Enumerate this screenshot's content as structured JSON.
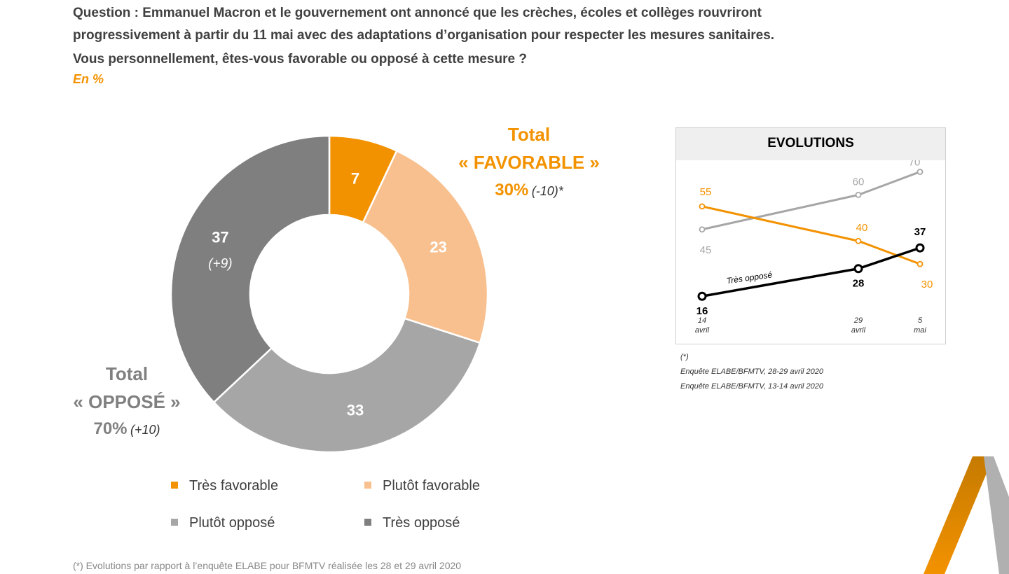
{
  "question": {
    "line1": "Question : Emmanuel Macron et le gouvernement ont annoncé que les crèches, écoles et collèges rouvriront",
    "line2": "progressivement à partir du 11 mai avec des adaptations d’organisation pour respecter les mesures sanitaires.",
    "line3": "Vous personnellement, êtes-vous favorable ou opposé à cette mesure ?",
    "unit": "En %"
  },
  "totals": {
    "favorable": {
      "label1": "Total",
      "label2": "« FAVORABLE »",
      "pct": "30%",
      "delta": "(-10)*"
    },
    "oppose": {
      "label1": "Total",
      "label2": "« OPPOSÉ »",
      "pct": "70%",
      "delta": "(+10)"
    }
  },
  "colors": {
    "tres_favorable": "#f39200",
    "plutot_favorable": "#f8c08f",
    "plutot_oppose": "#a6a6a6",
    "tres_oppose": "#7f7f7f",
    "accent_orange": "#f39200",
    "line_black": "#000000"
  },
  "legend": [
    "Très favorable",
    "Plutôt favorable",
    "Plutôt opposé",
    "Très opposé"
  ],
  "evolutions": {
    "title": "EVOLUTIONS",
    "line_label": "Très opposé",
    "notes": [
      "(*)",
      "Enquête ELABE/BFMTV, 28-29 avril 2020",
      "Enquête ELABE/BFMTV, 13-14 avril 2020"
    ]
  },
  "footer_partial": "(*) Evolutions par rapport à l’enquête ELABE pour BFMTV réalisée les 28 et 29 avril 2020",
  "chart_data": [
    {
      "type": "pie",
      "donut": true,
      "categories": [
        "Très favorable",
        "Plutôt favorable",
        "Plutôt opposé",
        "Très opposé"
      ],
      "values": [
        7,
        23,
        33,
        37
      ],
      "value_labels": [
        "7",
        "23",
        "33",
        "37"
      ],
      "annotations": [
        "(+9)"
      ]
    },
    {
      "type": "line",
      "title": "EVOLUTIONS",
      "x": [
        "14 avril",
        "29 avril",
        "5 mai"
      ],
      "series": [
        {
          "name": "",
          "values": [
            45,
            60,
            70
          ],
          "labels": [
            "45",
            "60",
            "70"
          ],
          "color": "#a6a6a6"
        },
        {
          "name": "",
          "values": [
            55,
            40,
            30
          ],
          "labels": [
            "55",
            "40",
            "30"
          ],
          "color": "#f39200"
        },
        {
          "name": "Très opposé",
          "values": [
            16,
            28,
            37
          ],
          "labels": [
            "16",
            "28",
            "37"
          ],
          "color": "#000000"
        }
      ],
      "ylim": [
        10,
        75
      ]
    }
  ]
}
